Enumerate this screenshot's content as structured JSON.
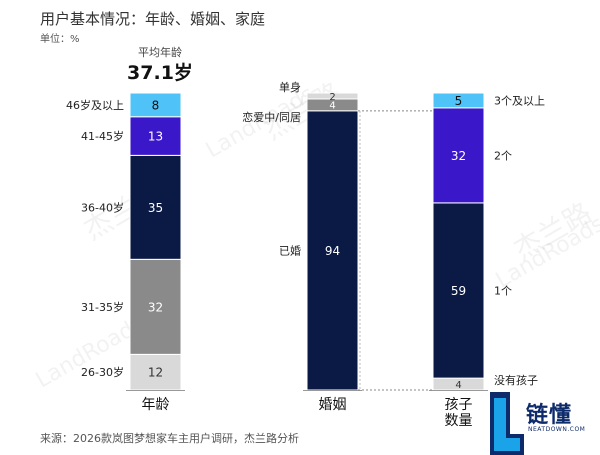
{
  "header": {
    "title": "用户基本情况：年龄、婚姻、家庭",
    "unit": "单位：%",
    "avg_label": "平均年龄",
    "avg_value": "37.1岁"
  },
  "footer": {
    "source": "来源：2026款岚图梦想家车主用户调研，杰兰路分析"
  },
  "logo": {
    "text": "链懂",
    "sub": "NEATDOWN.COM"
  },
  "watermark": {
    "text_cn": "杰兰路",
    "text_en": "LandRoads"
  },
  "colors": {
    "light_blue": "#4fc3f7",
    "purple": "#3a17c9",
    "navy": "#0a1a44",
    "gray": "#8a8a8a",
    "light_gray": "#d9d9d9"
  },
  "chart_data": {
    "type": "bar",
    "stacked": true,
    "normalized": true,
    "ylim": [
      0,
      100
    ],
    "categories": [
      "年龄",
      "婚姻",
      "孩子数量"
    ],
    "columns": [
      {
        "category": "年龄",
        "segments": [
          {
            "label": "26-30岁",
            "value": 12,
            "color": "#d9d9d9",
            "text_color": "#333333"
          },
          {
            "label": "31-35岁",
            "value": 32,
            "color": "#8a8a8a",
            "text_color": "#ffffff"
          },
          {
            "label": "36-40岁",
            "value": 35,
            "color": "#0a1a44",
            "text_color": "#ffffff"
          },
          {
            "label": "41-45岁",
            "value": 13,
            "color": "#3a17c9",
            "text_color": "#ffffff"
          },
          {
            "label": "46岁及以上",
            "value": 8,
            "color": "#4fc3f7",
            "text_color": "#111111"
          }
        ]
      },
      {
        "category": "婚姻",
        "segments": [
          {
            "label": "已婚",
            "value": 94,
            "color": "#0a1a44",
            "text_color": "#ffffff"
          },
          {
            "label": "恋爱中/同居",
            "value": 4,
            "color": "#8a8a8a",
            "text_color": "#ffffff"
          },
          {
            "label": "单身",
            "value": 2,
            "color": "#d9d9d9",
            "text_color": "#333333"
          }
        ]
      },
      {
        "category": "孩子数量",
        "segments": [
          {
            "label": "没有孩子",
            "value": 4,
            "color": "#d9d9d9",
            "text_color": "#333333"
          },
          {
            "label": "1个",
            "value": 59,
            "color": "#0a1a44",
            "text_color": "#ffffff"
          },
          {
            "label": "2个",
            "value": 32,
            "color": "#3a17c9",
            "text_color": "#ffffff"
          },
          {
            "label": "3个及以上",
            "value": 5,
            "color": "#4fc3f7",
            "text_color": "#111111"
          }
        ]
      }
    ]
  }
}
